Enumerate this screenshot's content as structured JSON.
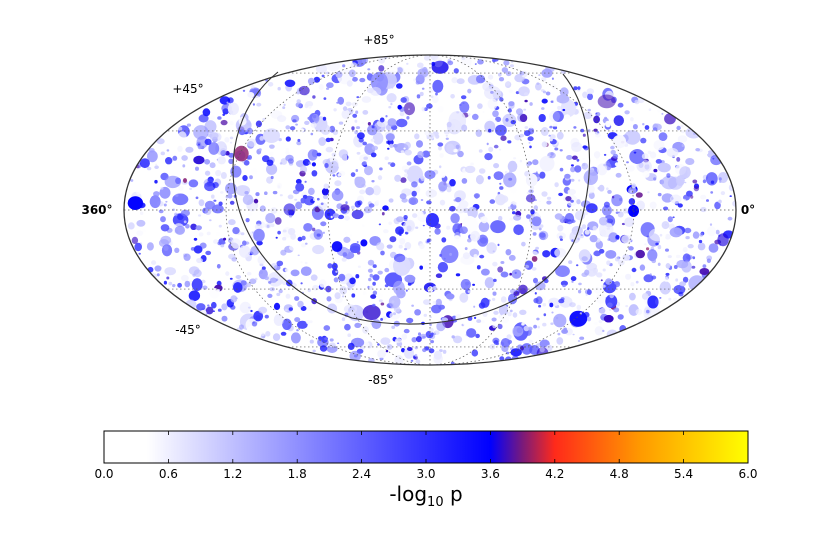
{
  "chart_data": {
    "type": "heatmap",
    "projection": "mollweide",
    "title": "",
    "latitude_labels": {
      "top": "+85°",
      "upper_left": "+45°",
      "lower_left": "-45°",
      "bottom": "-85°"
    },
    "longitude_labels": {
      "left": "360°",
      "right": "0°"
    },
    "graticule": {
      "dotted": true,
      "latitudes_deg": [
        -60,
        -30,
        0,
        30,
        60
      ],
      "longitudes_deg": [
        60,
        120,
        180,
        240,
        300
      ]
    },
    "galactic_plane_curve": true,
    "colorbar": {
      "label": "-log10 p",
      "label_main": "-log",
      "label_sub": "10",
      "label_tail": " p",
      "range": [
        0.0,
        6.0
      ],
      "ticks": [
        "0.0",
        "0.6",
        "1.2",
        "1.8",
        "2.4",
        "3.0",
        "3.6",
        "4.2",
        "4.8",
        "5.4",
        "6.0"
      ],
      "stops": [
        {
          "value": 0.0,
          "color": "#ffffff"
        },
        {
          "value": 0.4,
          "color": "#ffffff"
        },
        {
          "value": 3.6,
          "color": "#0000ff"
        },
        {
          "value": 3.9,
          "color": "#7a1a7a"
        },
        {
          "value": 4.2,
          "color": "#ff2a1a"
        },
        {
          "value": 5.0,
          "color": "#ff9a00"
        },
        {
          "value": 6.0,
          "color": "#ffff00"
        }
      ]
    },
    "map_values_range": [
      0.0,
      4.0
    ]
  }
}
